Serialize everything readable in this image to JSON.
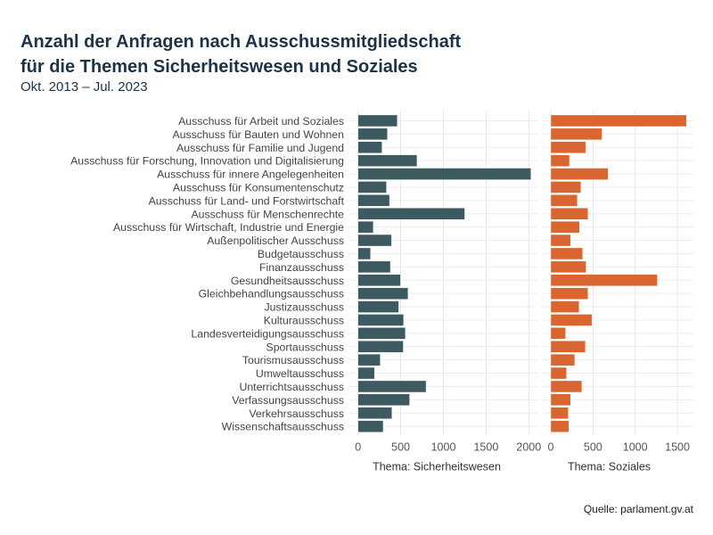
{
  "chart_data": {
    "type": "bar",
    "orientation": "horizontal",
    "title": "Anzahl der Anfragen nach Ausschussmitgliedschaft für die Themen Sicherheitswesen und Soziales",
    "title_lines": [
      "Anzahl der Anfragen nach Ausschussmitgliedschaft",
      "für die Themen Sicherheitswesen und Soziales"
    ],
    "subtitle": "Okt. 2013 – Jul. 2023",
    "caption": "Quelle: parlament.gv.at",
    "grid": true,
    "categories": [
      "Ausschuss für Arbeit und Soziales",
      "Ausschuss für Bauten und Wohnen",
      "Ausschuss für Familie und Jugend",
      "Ausschuss für Forschung, Innovation und Digitalisierung",
      "Ausschuss für innere Angelegenheiten",
      "Ausschuss für Konsumentenschutz",
      "Ausschuss für Land- und Forstwirtschaft",
      "Ausschuss für Menschenrechte",
      "Ausschuss für Wirtschaft, Industrie und Energie",
      "Außenpolitischer Ausschuss",
      "Budgetausschuss",
      "Finanzausschuss",
      "Gesundheitsausschuss",
      "Gleichbehandlungsausschuss",
      "Justizausschuss",
      "Kulturausschuss",
      "Landesverteidigungsausschuss",
      "Sportausschuss",
      "Tourismusausschuss",
      "Umweltausschuss",
      "Unterrichtsausschuss",
      "Verfassungsausschuss",
      "Verkehrsausschuss",
      "Wissenschaftsausschuss"
    ],
    "panels": [
      {
        "name": "Thema: Sicherheitswesen",
        "color": "#3d5a60",
        "ticks": [
          0,
          500,
          1000,
          1500,
          2000
        ],
        "xlim": [
          0,
          2025
        ],
        "values": [
          460,
          344,
          281,
          691,
          2025,
          333,
          369,
          1250,
          179,
          393,
          147,
          379,
          498,
          586,
          477,
          534,
          555,
          530,
          260,
          193,
          797,
          604,
          397,
          295
        ]
      },
      {
        "name": "Thema: Soziales",
        "color": "#d96530",
        "ticks": [
          0,
          500,
          1000,
          1500
        ],
        "xlim": [
          0,
          1607
        ],
        "values": [
          1607,
          606,
          413,
          221,
          680,
          357,
          315,
          441,
          340,
          235,
          378,
          417,
          1262,
          441,
          336,
          487,
          175,
          410,
          284,
          186,
          368,
          235,
          207,
          214
        ]
      }
    ]
  }
}
